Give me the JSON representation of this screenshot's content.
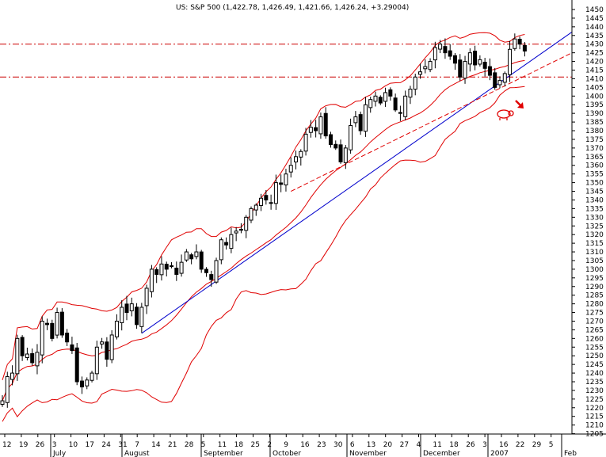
{
  "chart_data": {
    "type": "candlestick",
    "title": "US: S&P 500 (1,422.78, 1,426.49, 1,421.66, 1,426.24, +3.29004)",
    "y_axis": {
      "position": "right",
      "range": [
        1200,
        1455
      ],
      "tick_step": 5,
      "tick_min": 1205,
      "tick_max": 1450
    },
    "x_axis": {
      "day_labels": [
        "12",
        "19",
        "26",
        "3",
        "10",
        "17",
        "24",
        "31",
        "7",
        "14",
        "21",
        "28",
        "5",
        "11",
        "18",
        "25",
        "2",
        "9",
        "16",
        "23",
        "30",
        "6",
        "13",
        "20",
        "27",
        "4",
        "11",
        "18",
        "26",
        "3",
        "16",
        "22",
        "29",
        "5"
      ],
      "month_labels": [
        "July",
        "August",
        "September",
        "October",
        "November",
        "December",
        "2007",
        "Feb"
      ],
      "grid": false
    },
    "bands": [
      "upper-bollinger",
      "lower-bollinger",
      "moving-average"
    ],
    "trend_lines": [
      "long-term-uptrend",
      "short-term-support"
    ],
    "horizontal_levels": [
      1430,
      1411
    ],
    "annotations": [
      "bear-icon",
      "down-arrow"
    ],
    "colors": {
      "candle": "#000000",
      "band": "#e00000",
      "trend": "#0000cc",
      "level": "#cc0000",
      "axis": "#000000"
    },
    "closes": [
      1224,
      1238,
      1240,
      1260,
      1250,
      1251,
      1246,
      1252,
      1270,
      1268,
      1260,
      1275,
      1262,
      1258,
      1253,
      1235,
      1232,
      1236,
      1240,
      1255,
      1258,
      1248,
      1262,
      1270,
      1278,
      1275,
      1280,
      1268,
      1278,
      1289,
      1300,
      1297,
      1303,
      1300,
      1302,
      1297,
      1304,
      1310,
      1306,
      1310,
      1300,
      1298,
      1294,
      1305,
      1317,
      1314,
      1320,
      1322,
      1323,
      1330,
      1335,
      1337,
      1341,
      1340,
      1338,
      1350,
      1349,
      1355,
      1360,
      1365,
      1368,
      1378,
      1382,
      1380,
      1388,
      1377,
      1372,
      1370,
      1362,
      1370,
      1383,
      1388,
      1380,
      1395,
      1398,
      1400,
      1396,
      1402,
      1400,
      1392,
      1390,
      1400,
      1404,
      1411,
      1414,
      1417,
      1420,
      1428,
      1430,
      1425,
      1423,
      1419,
      1411,
      1420,
      1425,
      1418,
      1421,
      1416,
      1412,
      1405,
      1409,
      1413,
      1427,
      1433,
      1430,
      1426
    ]
  }
}
